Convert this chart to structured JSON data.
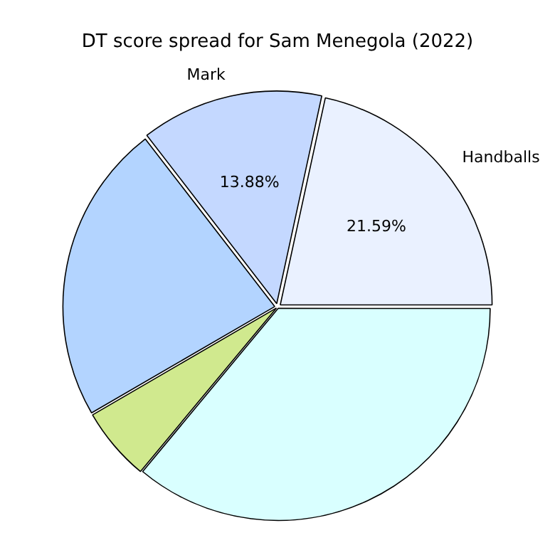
{
  "chart_data": {
    "type": "pie",
    "title": "DT score spread for Sam Menegola (2022)",
    "categories": [
      "Handballs",
      "Mark",
      null,
      null,
      null
    ],
    "values": [
      21.59,
      13.88,
      22.9,
      5.6,
      36.03
    ],
    "colors": [
      "#eaf1ff",
      "#c4d8ff",
      "#b3d4ff",
      "#d0e98e",
      "#d9ffff"
    ],
    "value_labels": [
      "21.59%",
      "13.88%",
      null,
      null,
      null
    ]
  }
}
